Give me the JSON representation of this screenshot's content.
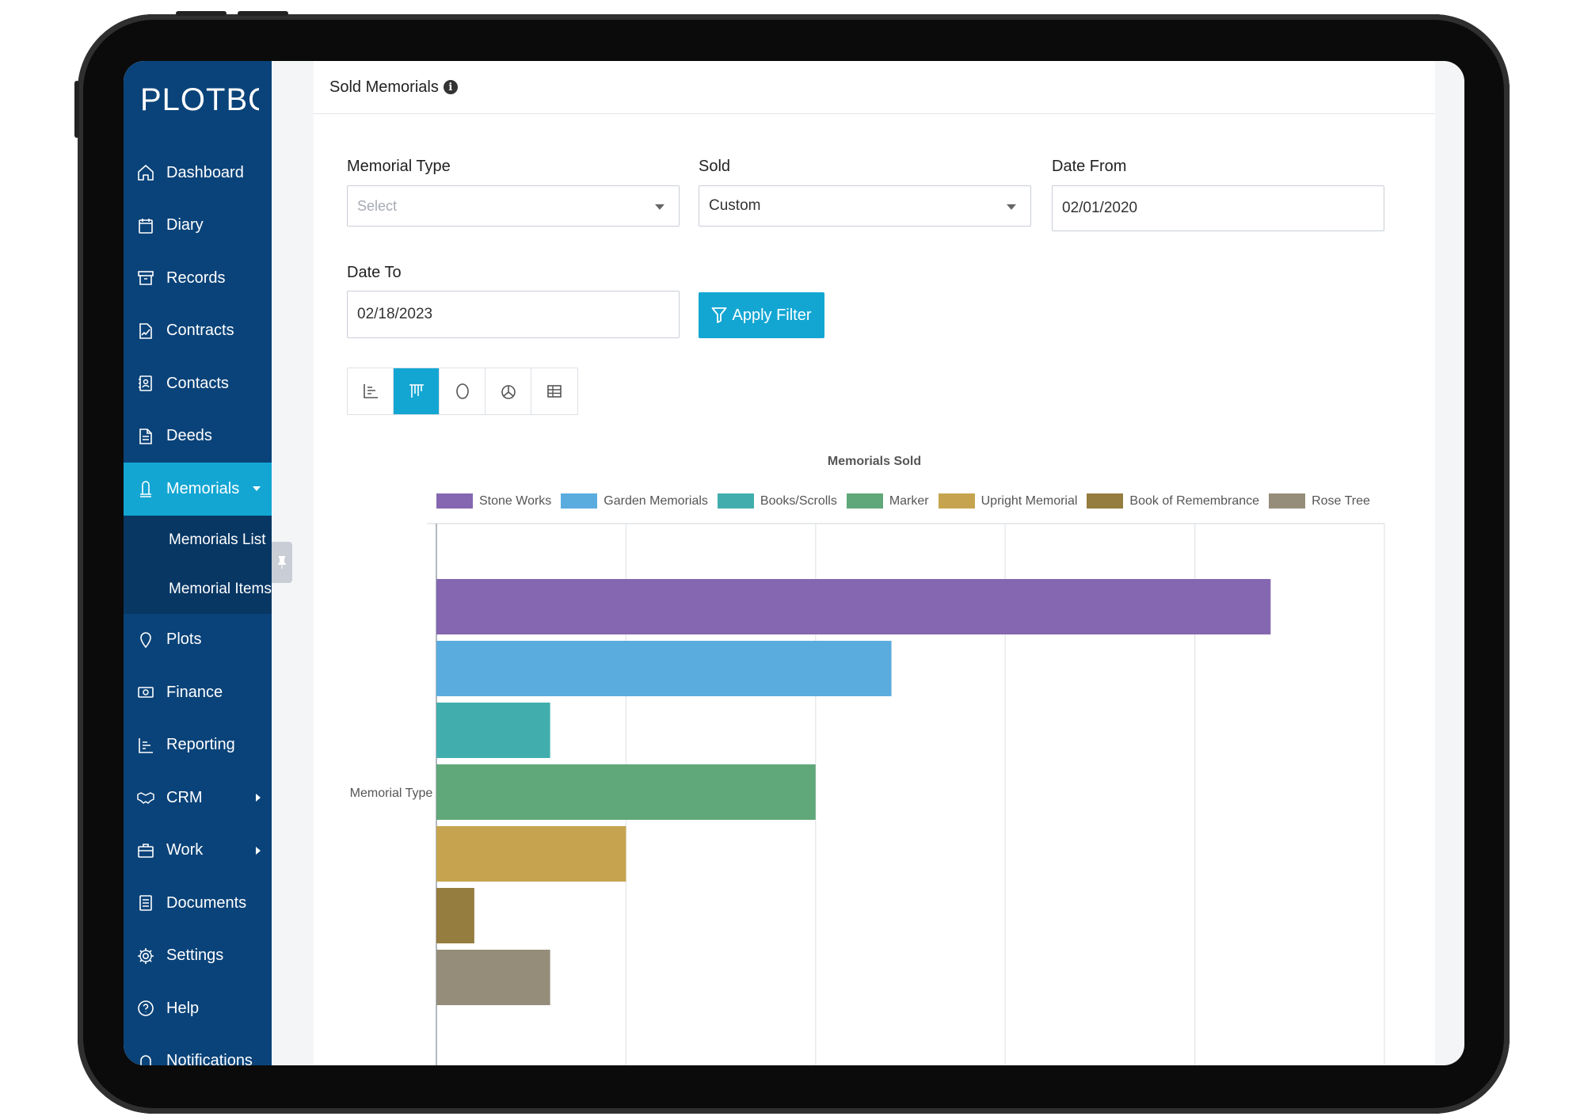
{
  "app": {
    "logo_text": "PLOTBOX"
  },
  "sidebar": {
    "items": [
      {
        "label": "Dashboard",
        "icon": "home-icon"
      },
      {
        "label": "Diary",
        "icon": "calendar-icon"
      },
      {
        "label": "Records",
        "icon": "archive-icon"
      },
      {
        "label": "Contracts",
        "icon": "contract-icon"
      },
      {
        "label": "Contacts",
        "icon": "contacts-icon"
      },
      {
        "label": "Deeds",
        "icon": "document-icon"
      },
      {
        "label": "Memorials",
        "icon": "memorial-icon",
        "active": true,
        "expanded": true
      },
      {
        "label": "Plots",
        "icon": "map-pin-icon"
      },
      {
        "label": "Finance",
        "icon": "money-icon"
      },
      {
        "label": "Reporting",
        "icon": "reporting-icon"
      },
      {
        "label": "CRM",
        "icon": "handshake-icon",
        "has_submenu": true
      },
      {
        "label": "Work",
        "icon": "briefcase-icon",
        "has_submenu": true
      },
      {
        "label": "Documents",
        "icon": "documents-icon"
      },
      {
        "label": "Settings",
        "icon": "gear-icon"
      },
      {
        "label": "Help",
        "icon": "help-icon"
      },
      {
        "label": "Notifications",
        "icon": "bell-icon"
      }
    ],
    "memorials_submenu": [
      "Memorials List",
      "Memorial Items"
    ]
  },
  "page": {
    "title": "Sold Memorials"
  },
  "filters": {
    "memorial_type": {
      "label": "Memorial Type",
      "placeholder": "Select"
    },
    "sold": {
      "label": "Sold",
      "value": "Custom"
    },
    "date_from": {
      "label": "Date From",
      "value": "02/01/2020"
    },
    "date_to": {
      "label": "Date To",
      "value": "02/18/2023"
    },
    "apply_label": "Apply Filter"
  },
  "view_toggles": [
    {
      "icon": "column-chart-icon",
      "active": false
    },
    {
      "icon": "bar-chart-icon",
      "active": true
    },
    {
      "icon": "donut-chart-icon",
      "active": false
    },
    {
      "icon": "pie-chart-icon",
      "active": false
    },
    {
      "icon": "table-icon",
      "active": false
    }
  ],
  "colors": {
    "sidebar": "#0a4379",
    "accent": "#13a6d3"
  },
  "chart_data": {
    "type": "bar",
    "orientation": "horizontal",
    "title": "Memorials Sold",
    "ylabel": "Memorial Type",
    "xlabel": "",
    "xlim": [
      0,
      25
    ],
    "grid": true,
    "legend_position": "top",
    "series": [
      {
        "name": "Stone Works",
        "value": 22,
        "color": "#8467b0"
      },
      {
        "name": "Garden Memorials",
        "value": 12,
        "color": "#5aacdf"
      },
      {
        "name": "Books/Scrolls",
        "value": 3,
        "color": "#41aead"
      },
      {
        "name": "Marker",
        "value": 10,
        "color": "#60a77a"
      },
      {
        "name": "Upright Memorial",
        "value": 5,
        "color": "#c6a44f"
      },
      {
        "name": "Book of Remembrance",
        "value": 1,
        "color": "#957c3f"
      },
      {
        "name": "Rose Tree",
        "value": 3,
        "color": "#958d7a"
      }
    ]
  }
}
